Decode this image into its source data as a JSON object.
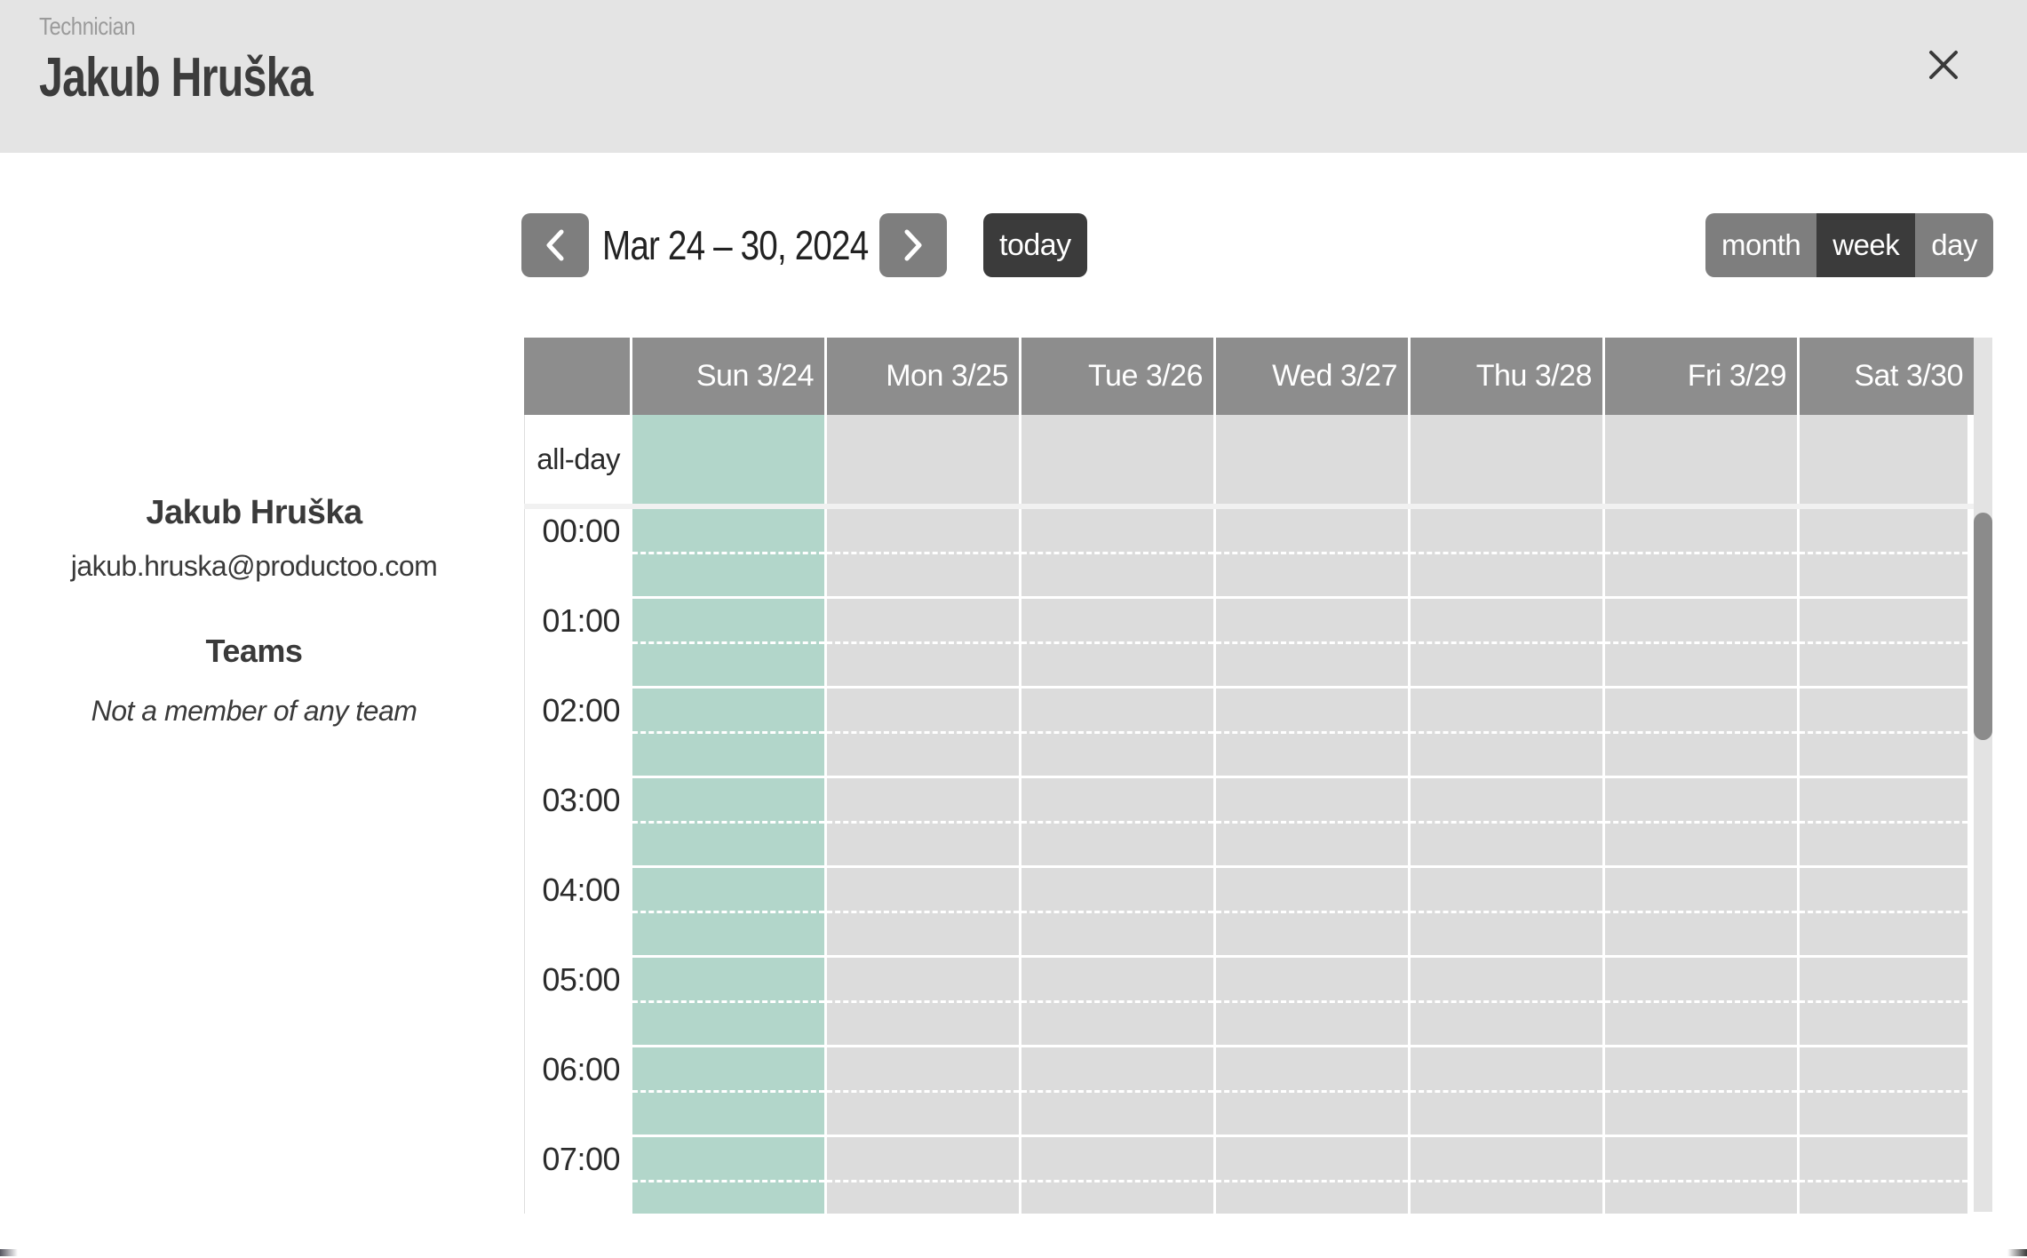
{
  "header": {
    "kicker": "Technician",
    "title": "Jakub Hruška",
    "close_icon": "x"
  },
  "profile": {
    "name": "Jakub Hruška",
    "email": "jakub.hruska@productoo.com",
    "teams_heading": "Teams",
    "teams_empty": "Not a member of any team"
  },
  "toolbar": {
    "date_range": "Mar 24 – 30, 2024",
    "today_label": "today",
    "prev_icon": "chevron-left",
    "next_icon": "chevron-right",
    "views": [
      {
        "label": "month",
        "active": false
      },
      {
        "label": "week",
        "active": true
      },
      {
        "label": "day",
        "active": false
      }
    ]
  },
  "calendar": {
    "all_day_label": "all-day",
    "days": [
      {
        "label": "Sun 3/24",
        "highlight": true
      },
      {
        "label": "Mon 3/25",
        "highlight": false
      },
      {
        "label": "Tue 3/26",
        "highlight": false
      },
      {
        "label": "Wed 3/27",
        "highlight": false
      },
      {
        "label": "Thu 3/28",
        "highlight": false
      },
      {
        "label": "Fri 3/29",
        "highlight": false
      },
      {
        "label": "Sat 3/30",
        "highlight": false
      }
    ],
    "hours": [
      "00:00",
      "01:00",
      "02:00",
      "03:00",
      "04:00",
      "05:00",
      "06:00",
      "07:00"
    ],
    "events": [],
    "colors": {
      "banner_bg": "#e4e4e4",
      "header_bg": "#8d8d8d",
      "cell_bg": "#dcdcdc",
      "highlight_bg": "#b2d6ca",
      "button_gray": "#7e7e7e",
      "button_dark": "#3b3b3b",
      "scroll_track": "#e3e3e3",
      "scroll_thumb": "#8b8b8b"
    }
  }
}
